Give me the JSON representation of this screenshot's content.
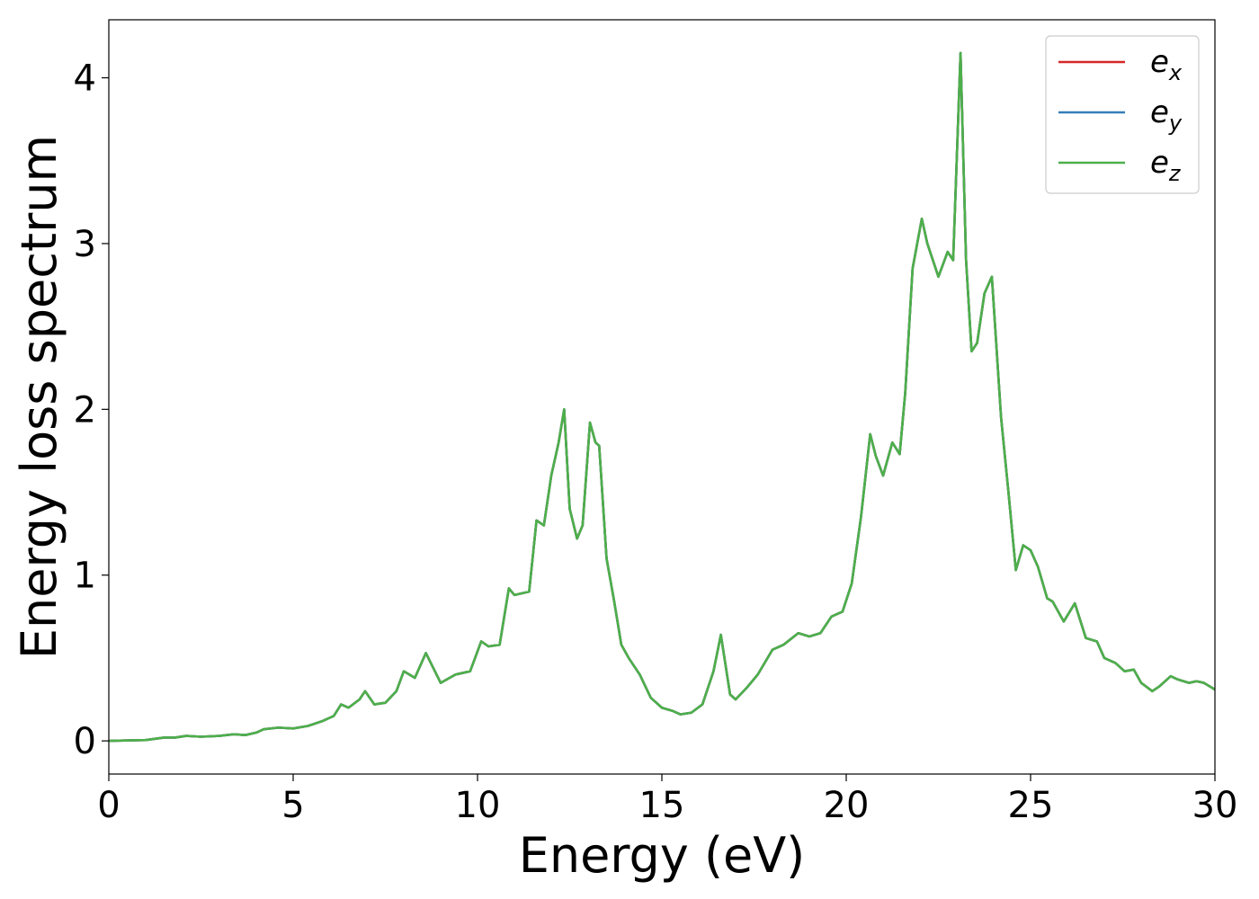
{
  "chart_data": {
    "type": "line",
    "title": "",
    "xlabel": "Energy (eV)",
    "ylabel": "Energy loss spectrum",
    "xlim": [
      0,
      30
    ],
    "ylim": [
      -0.2,
      4.35
    ],
    "xticks": [
      0,
      5,
      10,
      15,
      20,
      25,
      30
    ],
    "xtick_labels": [
      "0",
      "5",
      "10",
      "15",
      "20",
      "25",
      "30"
    ],
    "yticks": [
      0,
      1,
      2,
      3,
      4
    ],
    "ytick_labels": [
      "0",
      "1",
      "2",
      "3",
      "4"
    ],
    "grid": false,
    "legend_position": "top-right",
    "x": [
      0,
      1,
      1.5,
      1.8,
      2.1,
      2.5,
      3.0,
      3.4,
      3.7,
      4.0,
      4.2,
      4.6,
      5.0,
      5.4,
      5.8,
      6.1,
      6.3,
      6.5,
      6.8,
      6.95,
      7.2,
      7.5,
      7.8,
      8.0,
      8.3,
      8.6,
      9.0,
      9.4,
      9.8,
      10.1,
      10.3,
      10.6,
      10.85,
      11.0,
      11.2,
      11.4,
      11.6,
      11.8,
      12.0,
      12.2,
      12.35,
      12.5,
      12.7,
      12.85,
      13.05,
      13.2,
      13.3,
      13.5,
      13.7,
      13.9,
      14.1,
      14.4,
      14.7,
      15.0,
      15.3,
      15.5,
      15.8,
      16.1,
      16.4,
      16.6,
      16.85,
      17.0,
      17.3,
      17.6,
      18.0,
      18.3,
      18.7,
      19.0,
      19.3,
      19.6,
      19.9,
      20.15,
      20.4,
      20.65,
      20.8,
      21.0,
      21.25,
      21.45,
      21.6,
      21.8,
      22.05,
      22.2,
      22.5,
      22.75,
      22.9,
      23.1,
      23.25,
      23.4,
      23.55,
      23.75,
      23.95,
      24.2,
      24.4,
      24.6,
      24.8,
      25.0,
      25.2,
      25.45,
      25.6,
      25.9,
      26.2,
      26.5,
      26.8,
      27.0,
      27.3,
      27.55,
      27.8,
      28.0,
      28.3,
      28.5,
      28.8,
      29.0,
      29.3,
      29.5,
      29.7,
      30.0
    ],
    "series": [
      {
        "name": "e_x",
        "color": "#d62728",
        "values": [
          0,
          0.005,
          0.02,
          0.02,
          0.03,
          0.025,
          0.03,
          0.04,
          0.035,
          0.05,
          0.07,
          0.08,
          0.075,
          0.09,
          0.12,
          0.15,
          0.22,
          0.2,
          0.25,
          0.3,
          0.22,
          0.23,
          0.3,
          0.42,
          0.38,
          0.53,
          0.35,
          0.4,
          0.42,
          0.6,
          0.57,
          0.58,
          0.92,
          0.88,
          0.89,
          0.9,
          1.33,
          1.3,
          1.6,
          1.8,
          2.0,
          1.4,
          1.22,
          1.3,
          1.92,
          1.8,
          1.78,
          1.1,
          0.85,
          0.58,
          0.5,
          0.4,
          0.26,
          0.2,
          0.18,
          0.16,
          0.17,
          0.22,
          0.42,
          0.64,
          0.28,
          0.25,
          0.32,
          0.4,
          0.55,
          0.58,
          0.65,
          0.63,
          0.65,
          0.75,
          0.78,
          0.95,
          1.35,
          1.85,
          1.72,
          1.6,
          1.8,
          1.73,
          2.1,
          2.85,
          3.15,
          3.0,
          2.8,
          2.95,
          2.9,
          4.15,
          2.9,
          2.35,
          2.4,
          2.7,
          2.8,
          1.95,
          1.5,
          1.03,
          1.18,
          1.15,
          1.05,
          0.86,
          0.84,
          0.72,
          0.83,
          0.62,
          0.6,
          0.5,
          0.47,
          0.42,
          0.43,
          0.35,
          0.3,
          0.33,
          0.39,
          0.37,
          0.35,
          0.36,
          0.35,
          0.31
        ]
      },
      {
        "name": "e_y",
        "color": "#377eb8",
        "values": [
          0,
          0.005,
          0.02,
          0.02,
          0.03,
          0.025,
          0.03,
          0.04,
          0.035,
          0.05,
          0.07,
          0.08,
          0.075,
          0.09,
          0.12,
          0.15,
          0.22,
          0.2,
          0.25,
          0.3,
          0.22,
          0.23,
          0.3,
          0.42,
          0.38,
          0.53,
          0.35,
          0.4,
          0.42,
          0.6,
          0.57,
          0.58,
          0.92,
          0.88,
          0.89,
          0.9,
          1.33,
          1.3,
          1.6,
          1.8,
          2.0,
          1.4,
          1.22,
          1.3,
          1.92,
          1.8,
          1.78,
          1.1,
          0.85,
          0.58,
          0.5,
          0.4,
          0.26,
          0.2,
          0.18,
          0.16,
          0.17,
          0.22,
          0.42,
          0.64,
          0.28,
          0.25,
          0.32,
          0.4,
          0.55,
          0.58,
          0.65,
          0.63,
          0.65,
          0.75,
          0.78,
          0.95,
          1.35,
          1.85,
          1.72,
          1.6,
          1.8,
          1.73,
          2.1,
          2.85,
          3.15,
          3.0,
          2.8,
          2.95,
          2.9,
          4.15,
          2.9,
          2.35,
          2.4,
          2.7,
          2.8,
          1.95,
          1.5,
          1.03,
          1.18,
          1.15,
          1.05,
          0.86,
          0.84,
          0.72,
          0.83,
          0.62,
          0.6,
          0.5,
          0.47,
          0.42,
          0.43,
          0.35,
          0.3,
          0.33,
          0.39,
          0.37,
          0.35,
          0.36,
          0.35,
          0.31
        ]
      },
      {
        "name": "e_z",
        "color": "#4daf4a",
        "values": [
          0,
          0.005,
          0.02,
          0.02,
          0.03,
          0.025,
          0.03,
          0.04,
          0.035,
          0.05,
          0.07,
          0.08,
          0.075,
          0.09,
          0.12,
          0.15,
          0.22,
          0.2,
          0.25,
          0.3,
          0.22,
          0.23,
          0.3,
          0.42,
          0.38,
          0.53,
          0.35,
          0.4,
          0.42,
          0.6,
          0.57,
          0.58,
          0.92,
          0.88,
          0.89,
          0.9,
          1.33,
          1.3,
          1.6,
          1.8,
          2.0,
          1.4,
          1.22,
          1.3,
          1.92,
          1.8,
          1.78,
          1.1,
          0.85,
          0.58,
          0.5,
          0.4,
          0.26,
          0.2,
          0.18,
          0.16,
          0.17,
          0.22,
          0.42,
          0.64,
          0.28,
          0.25,
          0.32,
          0.4,
          0.55,
          0.58,
          0.65,
          0.63,
          0.65,
          0.75,
          0.78,
          0.95,
          1.35,
          1.85,
          1.72,
          1.6,
          1.8,
          1.73,
          2.1,
          2.85,
          3.15,
          3.0,
          2.8,
          2.95,
          2.9,
          4.15,
          2.9,
          2.35,
          2.4,
          2.7,
          2.8,
          1.95,
          1.5,
          1.03,
          1.18,
          1.15,
          1.05,
          0.86,
          0.84,
          0.72,
          0.83,
          0.62,
          0.6,
          0.5,
          0.47,
          0.42,
          0.43,
          0.35,
          0.3,
          0.33,
          0.39,
          0.37,
          0.35,
          0.36,
          0.35,
          0.31
        ]
      }
    ],
    "legend": [
      {
        "base": "e",
        "sub": "x",
        "color": "#d62728"
      },
      {
        "base": "e",
        "sub": "y",
        "color": "#377eb8"
      },
      {
        "base": "e",
        "sub": "z",
        "color": "#4daf4a"
      }
    ]
  }
}
